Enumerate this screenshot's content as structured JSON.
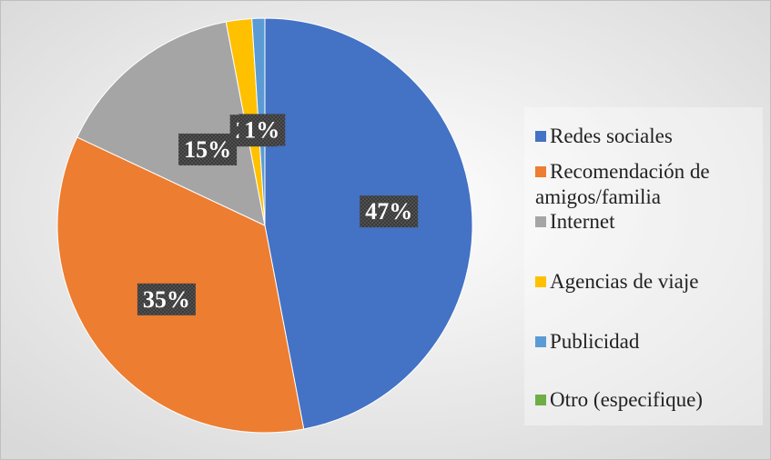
{
  "chart_data": {
    "type": "pie",
    "categories": [
      "Redes sociales",
      "Recomendación de amigos/familia",
      "Internet",
      "Agencias de viaje",
      "Publicidad",
      "Otro (especifique)"
    ],
    "values": [
      47,
      35,
      15,
      2,
      1,
      0
    ],
    "value_labels": [
      "47%",
      "35%",
      "15%",
      "2%",
      "1%",
      null
    ],
    "colors": [
      "#4472c4",
      "#ed7d31",
      "#a5a5a5",
      "#ffc000",
      "#5b9bd5",
      "#70ad47"
    ],
    "legend": "right"
  }
}
